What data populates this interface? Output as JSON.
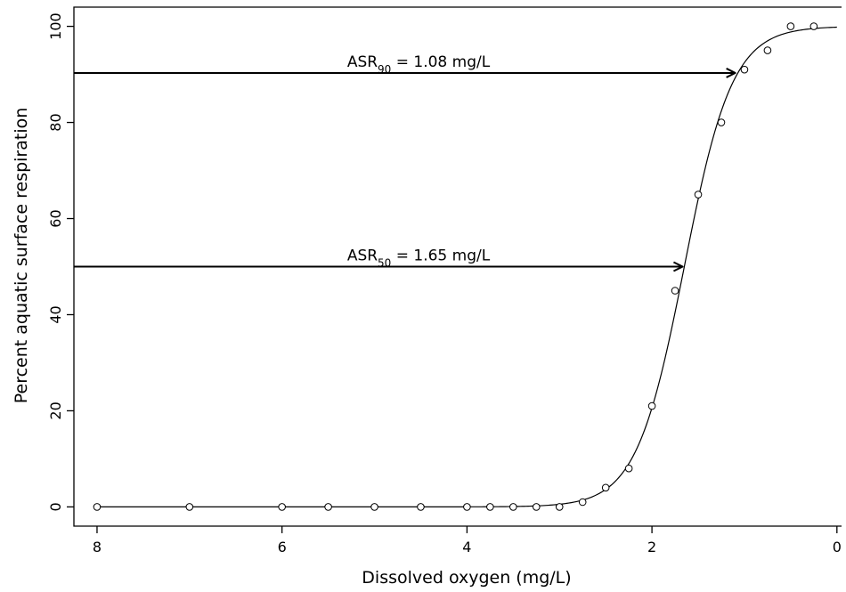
{
  "chart_data": {
    "type": "scatter",
    "title": "",
    "xlabel": "Dissolved oxygen (mg/L)",
    "ylabel": "Percent aquatic surface respiration",
    "xlim": [
      8.25,
      -0.05
    ],
    "ylim": [
      -4,
      104
    ],
    "x_reversed": true,
    "xticks": [
      8,
      6,
      4,
      2,
      0
    ],
    "yticks": [
      0,
      20,
      40,
      60,
      80,
      100
    ],
    "grid": false,
    "series": [
      {
        "x": [
          8,
          7,
          6,
          5.5,
          5,
          4.5,
          4,
          3.75,
          3.5,
          3.25,
          3,
          2.75,
          2.5,
          2.25,
          2,
          1.75,
          1.5,
          1.25,
          1,
          0.75,
          0.5,
          0.25
        ],
        "y": [
          0,
          0,
          0,
          0,
          0,
          0,
          0,
          0,
          0,
          0,
          0,
          1,
          4,
          8,
          21,
          45,
          65,
          80,
          91,
          95,
          100,
          100
        ]
      }
    ],
    "fit_curve": {
      "model": "logistic",
      "x50": 1.65,
      "x90": 1.08,
      "x_range": [
        8,
        0
      ]
    },
    "annotations": [
      {
        "pre": "ASR",
        "sub": "90",
        "post": " = 1.08 mg/L",
        "y": 90.3,
        "x_end": 1.08
      },
      {
        "pre": "ASR",
        "sub": "50",
        "post": " = 1.65 mg/L",
        "y": 50,
        "x_end": 1.65
      }
    ]
  }
}
